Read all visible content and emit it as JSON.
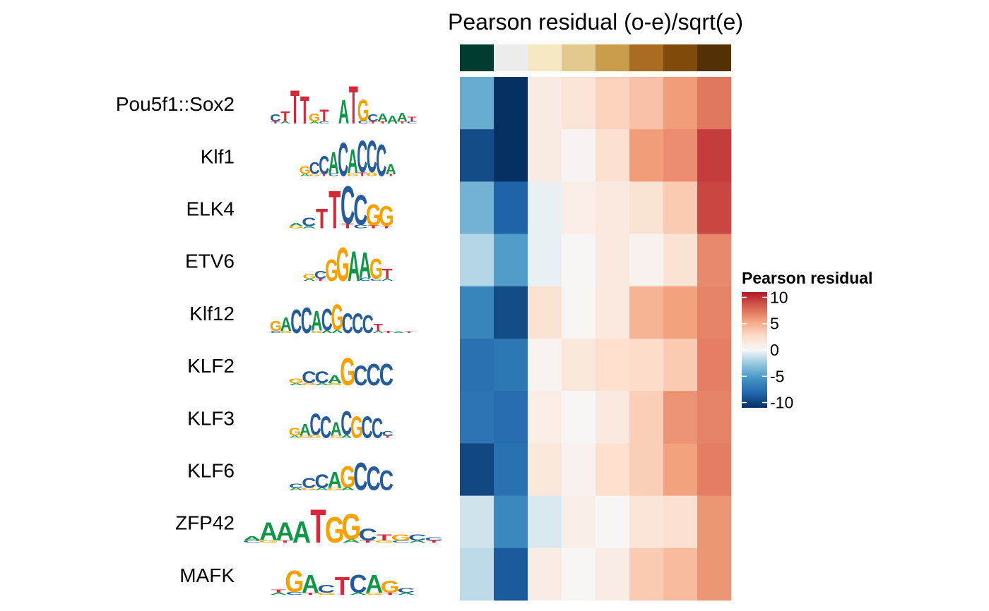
{
  "chart_data": {
    "type": "heatmap",
    "title": "Pearson residual (o-e)/sqrt(e)",
    "rows": [
      "Pou5f1::Sox2",
      "Klf1",
      "ELK4",
      "ETV6",
      "Klf12",
      "KLF2",
      "KLF3",
      "KLF6",
      "ZFP42",
      "MAFK"
    ],
    "column_annotation_colors": [
      "#003c30",
      "#ececec",
      "#f6e8c3",
      "#e3c98c",
      "#c99c4c",
      "#a96c22",
      "#7f4a0a",
      "#543005"
    ],
    "values": [
      [
        -4.2,
        -11.0,
        1.2,
        1.8,
        3.2,
        4.0,
        5.8,
        7.3
      ],
      [
        -9.6,
        -11.0,
        1.2,
        0.4,
        2.3,
        5.8,
        6.5,
        9.6
      ],
      [
        -3.8,
        -8.4,
        -0.4,
        1.0,
        1.4,
        2.0,
        3.6,
        9.2
      ],
      [
        -1.8,
        -5.0,
        -0.4,
        0.2,
        1.4,
        0.6,
        2.0,
        6.6
      ],
      [
        -6.4,
        -9.6,
        2.0,
        0.3,
        1.4,
        4.8,
        5.6,
        6.8
      ],
      [
        -7.6,
        -7.2,
        0.4,
        1.6,
        2.4,
        2.6,
        3.6,
        7.0
      ],
      [
        -7.4,
        -7.8,
        1.0,
        0.2,
        1.4,
        3.4,
        6.2,
        6.8
      ],
      [
        -9.8,
        -7.6,
        1.6,
        0.6,
        2.4,
        3.4,
        5.6,
        7.1
      ],
      [
        -1.1,
        -6.2,
        -0.8,
        0.8,
        0.1,
        1.8,
        2.2,
        6.1
      ],
      [
        -1.6,
        -8.8,
        1.1,
        0.2,
        1.1,
        3.6,
        4.4,
        6.1
      ]
    ],
    "legend": {
      "title": "Pearson residual",
      "ticks": [
        10,
        5,
        0,
        -5,
        -10
      ],
      "tick_labels": [
        "10",
        "5",
        "0",
        "-5",
        "-10"
      ],
      "range": [
        -11,
        11
      ],
      "placement": "right"
    },
    "colorscale": {
      "stops": [
        -11,
        -8.25,
        -5.5,
        -2.75,
        0,
        2.75,
        5.5,
        8.25,
        11
      ],
      "colors": [
        "#053061",
        "#2166ac",
        "#4393c3",
        "#92c5de",
        "#f7f7f7",
        "#fddbc7",
        "#f4a582",
        "#d6604d",
        "#b2182b"
      ],
      "extreme_high": "#67001f"
    },
    "motif_logos": [
      {
        "name": "Pou5f1::Sox2",
        "letters": [
          [
            "C",
            "T"
          ],
          [
            "T",
            "A"
          ],
          [
            "T",
            ""
          ],
          [
            "T",
            ""
          ],
          [
            "G",
            "A"
          ],
          [
            "T",
            "C"
          ],
          [
            "",
            ""
          ],
          [
            "A",
            ""
          ],
          [
            "T",
            ""
          ],
          [
            "G",
            "C"
          ],
          [
            "C",
            "T"
          ],
          [
            "A",
            "T"
          ],
          [
            "A",
            ""
          ],
          [
            "A",
            "T"
          ],
          [
            "T",
            "C"
          ]
        ]
      },
      {
        "name": "Klf1",
        "letters": [
          [
            "G",
            "A"
          ],
          [
            "C",
            "G"
          ],
          [
            "C",
            "T"
          ],
          [
            "A",
            "C"
          ],
          [
            "C",
            ""
          ],
          [
            "A",
            "G"
          ],
          [
            "C",
            "T"
          ],
          [
            "C",
            "G"
          ],
          [
            "C",
            ""
          ],
          [
            "A",
            "T"
          ]
        ]
      },
      {
        "name": "ELK4",
        "letters": [
          [
            "A",
            "G"
          ],
          [
            "C",
            "A"
          ],
          [
            "T",
            ""
          ],
          [
            "T",
            ""
          ],
          [
            "C",
            "T"
          ],
          [
            "C",
            "C"
          ],
          [
            "G",
            "T"
          ],
          [
            "G",
            "T"
          ]
        ]
      },
      {
        "name": "ETV6",
        "letters": [
          [
            "G",
            "A"
          ],
          [
            "C",
            "T"
          ],
          [
            "G",
            ""
          ],
          [
            "G",
            ""
          ],
          [
            "A",
            ""
          ],
          [
            "A",
            "C"
          ],
          [
            "G",
            "C"
          ],
          [
            "T",
            "A"
          ]
        ]
      },
      {
        "name": "Klf12",
        "letters": [
          [
            "G",
            "C"
          ],
          [
            "A",
            "G"
          ],
          [
            "C",
            ""
          ],
          [
            "C",
            ""
          ],
          [
            "A",
            "G"
          ],
          [
            "C",
            "A"
          ],
          [
            "G",
            "A"
          ],
          [
            "C",
            ""
          ],
          [
            "C",
            ""
          ],
          [
            "C",
            ""
          ],
          [
            "T",
            "A"
          ],
          [
            "T",
            ""
          ],
          [
            "A",
            ""
          ],
          [
            "T",
            ""
          ]
        ]
      },
      {
        "name": "KLF2",
        "letters": [
          [
            "G",
            "A"
          ],
          [
            "C",
            "G"
          ],
          [
            "C",
            "A"
          ],
          [
            "A",
            "G"
          ],
          [
            "G",
            ""
          ],
          [
            "C",
            ""
          ],
          [
            "C",
            ""
          ],
          [
            "C",
            ""
          ]
        ]
      },
      {
        "name": "KLF3",
        "letters": [
          [
            "G",
            "A"
          ],
          [
            "A",
            "G"
          ],
          [
            "C",
            "G"
          ],
          [
            "C",
            ""
          ],
          [
            "A",
            "G"
          ],
          [
            "C",
            "A"
          ],
          [
            "G",
            ""
          ],
          [
            "C",
            ""
          ],
          [
            "C",
            ""
          ],
          [
            "C",
            "T"
          ]
        ]
      },
      {
        "name": "KLF6",
        "letters": [
          [
            "C",
            "A"
          ],
          [
            "C",
            "G"
          ],
          [
            "C",
            "A"
          ],
          [
            "A",
            "G"
          ],
          [
            "G",
            "A"
          ],
          [
            "C",
            ""
          ],
          [
            "C",
            ""
          ],
          [
            "C",
            ""
          ]
        ]
      },
      {
        "name": "ZFP42",
        "letters": [
          [
            "A",
            "C"
          ],
          [
            "A",
            "G"
          ],
          [
            "A",
            "T"
          ],
          [
            "A",
            ""
          ],
          [
            "T",
            ""
          ],
          [
            "G",
            ""
          ],
          [
            "G",
            "A"
          ],
          [
            "C",
            "T"
          ],
          [
            "T",
            "G"
          ],
          [
            "G",
            "C"
          ],
          [
            "C",
            "A"
          ],
          [
            "C",
            "T"
          ]
        ]
      },
      {
        "name": "MAFK",
        "letters": [
          [
            "T",
            "A"
          ],
          [
            "G",
            "C"
          ],
          [
            "A",
            "T"
          ],
          [
            "C",
            "G"
          ],
          [
            "T",
            ""
          ],
          [
            "C",
            "A"
          ],
          [
            "A",
            "G"
          ],
          [
            "G",
            "T"
          ],
          [
            "C",
            "A"
          ]
        ]
      }
    ]
  }
}
